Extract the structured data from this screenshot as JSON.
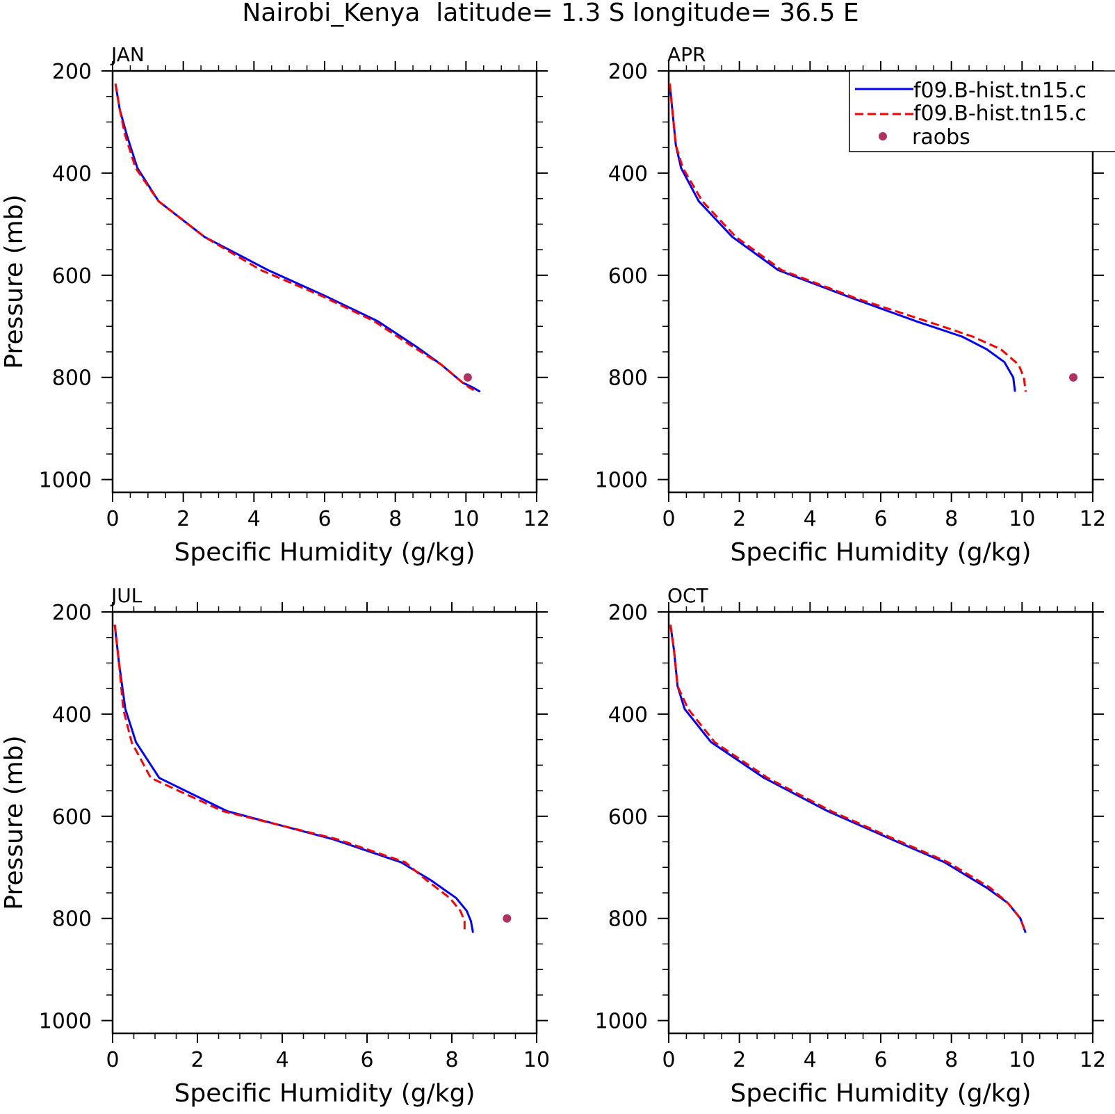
{
  "title": "Nairobi_Kenya  latitude= 1.3 S longitude= 36.5 E",
  "legend": {
    "placement": "top-right of APR panel",
    "entries": [
      {
        "label": "f09.B-hist.tn15.c",
        "style": "solid",
        "color": "#0000ff"
      },
      {
        "label": "f09.B-hist.tn15.c",
        "style": "dashed",
        "color": "#ff0000"
      },
      {
        "label": "raobs",
        "style": "marker",
        "color": "#b03060"
      }
    ]
  },
  "colors": {
    "model1": "#0000ff",
    "model2": "#ff0000",
    "obs": "#b03060",
    "axis": "#000000"
  },
  "chart_data": [
    {
      "type": "line",
      "panel": "JAN",
      "title": "JAN",
      "xlabel": "Specific Humidity (g/kg)",
      "ylabel": "Pressure (mb)",
      "xlim": [
        0,
        12
      ],
      "ylim": [
        200,
        1025
      ],
      "y_inverted": true,
      "xticks": [
        0,
        2,
        4,
        6,
        8,
        10,
        12
      ],
      "yticks": [
        200,
        400,
        600,
        800,
        1000
      ],
      "series": [
        {
          "name": "f09.B-hist.tn15.c",
          "x": [
            0.08,
            0.2,
            0.4,
            0.7,
            1.3,
            2.6,
            4.4,
            6.0,
            7.5,
            8.6,
            9.3,
            9.9,
            10.2,
            10.4
          ],
          "y": [
            225,
            275,
            325,
            390,
            455,
            525,
            590,
            640,
            690,
            740,
            775,
            810,
            820,
            828
          ]
        },
        {
          "name": "f09.B-hist.tn15.c",
          "x": [
            0.08,
            0.2,
            0.35,
            0.65,
            1.3,
            2.6,
            4.2,
            5.9,
            7.4,
            8.5,
            9.3,
            9.9,
            10.1,
            10.3
          ],
          "y": [
            225,
            275,
            325,
            390,
            455,
            525,
            590,
            640,
            690,
            740,
            775,
            810,
            820,
            828
          ]
        },
        {
          "name": "raobs",
          "x": [
            10.05
          ],
          "y": [
            800
          ]
        }
      ]
    },
    {
      "type": "line",
      "panel": "APR",
      "title": "APR",
      "xlabel": "Specific Humidity (g/kg)",
      "ylabel": "",
      "xlim": [
        0,
        12
      ],
      "ylim": [
        200,
        1025
      ],
      "y_inverted": true,
      "xticks": [
        0,
        2,
        4,
        6,
        8,
        10,
        12
      ],
      "yticks": [
        200,
        400,
        600,
        800,
        1000
      ],
      "series": [
        {
          "name": "f09.B-hist.tn15.c",
          "x": [
            0.03,
            0.1,
            0.2,
            0.35,
            0.85,
            1.8,
            3.1,
            5.2,
            7.0,
            8.3,
            9.0,
            9.5,
            9.75,
            9.8
          ],
          "y": [
            225,
            275,
            345,
            390,
            455,
            525,
            590,
            645,
            690,
            720,
            745,
            770,
            800,
            828
          ]
        },
        {
          "name": "f09.B-hist.tn15.c",
          "x": [
            0.03,
            0.1,
            0.2,
            0.4,
            0.95,
            1.9,
            3.2,
            5.3,
            7.3,
            8.6,
            9.4,
            9.9,
            10.05,
            10.1
          ],
          "y": [
            225,
            275,
            345,
            390,
            455,
            525,
            590,
            645,
            690,
            720,
            745,
            775,
            800,
            828
          ]
        },
        {
          "name": "raobs",
          "x": [
            11.45
          ],
          "y": [
            800
          ]
        }
      ]
    },
    {
      "type": "line",
      "panel": "JUL",
      "title": "JUL",
      "xlabel": "Specific Humidity (g/kg)",
      "ylabel": "Pressure (mb)",
      "xlim": [
        0,
        10
      ],
      "ylim": [
        200,
        1025
      ],
      "y_inverted": true,
      "xticks": [
        0,
        2,
        4,
        6,
        8,
        10
      ],
      "yticks": [
        200,
        400,
        600,
        800,
        1000
      ],
      "series": [
        {
          "name": "f09.B-hist.tn15.c",
          "x": [
            0.05,
            0.15,
            0.3,
            0.55,
            1.1,
            2.7,
            5.2,
            6.8,
            7.5,
            8.1,
            8.35,
            8.45,
            8.5
          ],
          "y": [
            225,
            300,
            390,
            455,
            525,
            590,
            645,
            690,
            725,
            760,
            785,
            805,
            828
          ]
        },
        {
          "name": "f09.B-hist.tn15.c",
          "x": [
            0.05,
            0.15,
            0.25,
            0.45,
            0.9,
            2.6,
            5.3,
            6.9,
            7.4,
            7.95,
            8.2,
            8.3,
            8.3
          ],
          "y": [
            225,
            300,
            390,
            455,
            525,
            590,
            645,
            690,
            725,
            760,
            785,
            805,
            828
          ]
        },
        {
          "name": "raobs",
          "x": [
            9.3
          ],
          "y": [
            800
          ]
        }
      ]
    },
    {
      "type": "line",
      "panel": "OCT",
      "title": "OCT",
      "xlabel": "Specific Humidity (g/kg)",
      "ylabel": "",
      "xlim": [
        0,
        12
      ],
      "ylim": [
        200,
        1025
      ],
      "y_inverted": true,
      "xticks": [
        0,
        2,
        4,
        6,
        8,
        10,
        12
      ],
      "yticks": [
        200,
        400,
        600,
        800,
        1000
      ],
      "series": [
        {
          "name": "f09.B-hist.tn15.c",
          "x": [
            0.05,
            0.15,
            0.25,
            0.45,
            1.2,
            2.7,
            4.5,
            6.3,
            7.8,
            9.0,
            9.6,
            9.95,
            10.1
          ],
          "y": [
            225,
            275,
            345,
            390,
            455,
            525,
            590,
            645,
            690,
            740,
            770,
            800,
            828
          ]
        },
        {
          "name": "f09.B-hist.tn15.c",
          "x": [
            0.05,
            0.15,
            0.25,
            0.55,
            1.3,
            2.8,
            4.6,
            6.4,
            7.9,
            9.1,
            9.6,
            9.95,
            10.1
          ],
          "y": [
            225,
            275,
            345,
            390,
            455,
            525,
            590,
            645,
            690,
            740,
            770,
            800,
            828
          ]
        }
      ]
    }
  ]
}
